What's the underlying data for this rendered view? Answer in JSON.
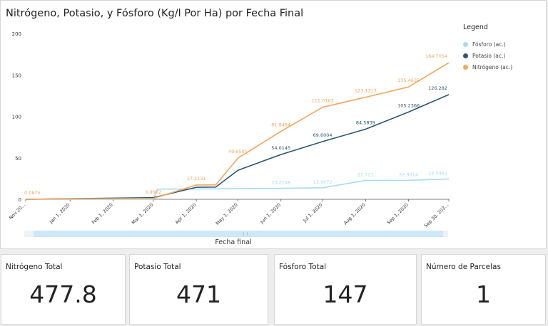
{
  "chart": {
    "title": "Nitrógeno, Potasio, y Fósforo (Kg/l Por Ha) por Fecha Final",
    "legend_title": "Legend",
    "x_axis_title": "Fecha final"
  },
  "chart_data": {
    "type": "line",
    "title": "Nitrógeno, Potasio, y Fósforo (Kg/l Por Ha) por Fecha Final",
    "xlabel": "Fecha final",
    "ylabel": "",
    "ylim": [
      0,
      200
    ],
    "yticks": [
      0,
      50,
      100,
      150,
      200
    ],
    "xlim": [
      "2019-11-30",
      "2020-09-30"
    ],
    "x_ticks": [
      {
        "date": "2019-11-30",
        "label": "Nov 20..."
      },
      {
        "date": "2020-01-01",
        "label": "Jan 1, 2020"
      },
      {
        "date": "2020-02-01",
        "label": "Feb 1, 2020"
      },
      {
        "date": "2020-03-01",
        "label": "Mar 1, 2020"
      },
      {
        "date": "2020-04-01",
        "label": "Apr 1, 2020"
      },
      {
        "date": "2020-05-01",
        "label": "May 1, 2020"
      },
      {
        "date": "2020-06-01",
        "label": "Jun 1, 2020"
      },
      {
        "date": "2020-07-01",
        "label": "Jul 1, 2020"
      },
      {
        "date": "2020-08-01",
        "label": "Aug 1, 2020"
      },
      {
        "date": "2020-09-01",
        "label": "Sep 1, 2020"
      },
      {
        "date": "2020-09-30",
        "label": "Sep 30, 202..."
      }
    ],
    "grid": false,
    "legend_position": "right",
    "series": [
      {
        "name": "Fósforo (ac.)",
        "color": "#a6dcef",
        "points": [
          {
            "x": "2019-11-30",
            "y": 0
          },
          {
            "x": "2020-03-01",
            "y": 0
          },
          {
            "x": "2020-03-04",
            "y": 12.3
          },
          {
            "x": "2020-05-01",
            "y": 12.8
          },
          {
            "x": "2020-06-01",
            "y": 13.2248,
            "label": "13.2248"
          },
          {
            "x": "2020-07-01",
            "y": 13.9072,
            "label": "13.9072"
          },
          {
            "x": "2020-08-01",
            "y": 22.721,
            "label": "22.721"
          },
          {
            "x": "2020-09-01",
            "y": 22.9014,
            "label": "22.9014"
          },
          {
            "x": "2020-09-30",
            "y": 24.5462,
            "label": "24.5462"
          }
        ]
      },
      {
        "name": "Potasio (ac.)",
        "color": "#2b5871",
        "points": [
          {
            "x": "2019-11-30",
            "y": 0
          },
          {
            "x": "2020-03-01",
            "y": 2
          },
          {
            "x": "2020-04-01",
            "y": 14.5
          },
          {
            "x": "2020-04-15",
            "y": 14.8
          },
          {
            "x": "2020-05-01",
            "y": 35
          },
          {
            "x": "2020-06-01",
            "y": 54.0145,
            "label": "54.0145"
          },
          {
            "x": "2020-07-01",
            "y": 69.6004,
            "label": "69.6004"
          },
          {
            "x": "2020-08-01",
            "y": 84.5839,
            "label": "84.5839"
          },
          {
            "x": "2020-09-01",
            "y": 105.2366,
            "label": "105.2366"
          },
          {
            "x": "2020-09-30",
            "y": 126.282,
            "label": "126.282"
          }
        ]
      },
      {
        "name": "Nitrógeno (ac.)",
        "color": "#f5a55c",
        "points": [
          {
            "x": "2019-11-30",
            "y": 0.0875,
            "label": "0.0875"
          },
          {
            "x": "2020-03-01",
            "y": 0.9902,
            "label": "0.9902"
          },
          {
            "x": "2020-04-01",
            "y": 17.2131,
            "label": "17.2131"
          },
          {
            "x": "2020-04-15",
            "y": 17.4
          },
          {
            "x": "2020-05-01",
            "y": 49.6591,
            "label": "49.6591"
          },
          {
            "x": "2020-06-01",
            "y": 81.8484,
            "label": "81.8484"
          },
          {
            "x": "2020-07-01",
            "y": 111.0163,
            "label": "111.0163"
          },
          {
            "x": "2020-08-01",
            "y": 123.1313,
            "label": "123.1313"
          },
          {
            "x": "2020-09-01",
            "y": 135.4635,
            "label": "135.4635"
          },
          {
            "x": "2020-09-30",
            "y": 164.7054,
            "label": "164.7054"
          }
        ]
      }
    ]
  },
  "kpis": [
    {
      "label": "Nitrógeno Total",
      "value": "477.8"
    },
    {
      "label": "Potasio Total",
      "value": "471"
    },
    {
      "label": "Fósforo Total",
      "value": "147"
    },
    {
      "label": "Número de Parcelas",
      "value": "1"
    }
  ]
}
